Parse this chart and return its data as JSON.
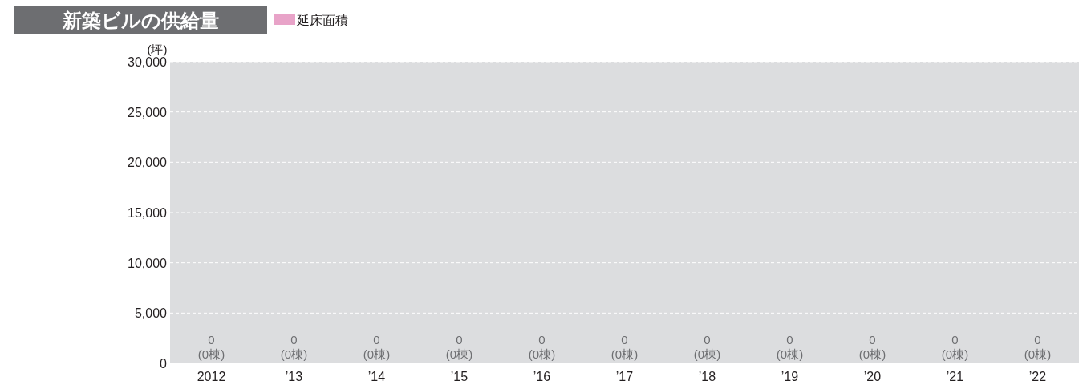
{
  "chart_data": {
    "type": "bar",
    "title": "新築ビルの供給量",
    "ylabel": "(坪)",
    "categories": [
      "2012",
      "’13",
      "’14",
      "’15",
      "’16",
      "’17",
      "’18",
      "’19",
      "’20",
      "’21",
      "’22"
    ],
    "series": [
      {
        "name": "延床面積",
        "color": "#e8a3c8",
        "values": [
          0,
          0,
          0,
          0,
          0,
          0,
          0,
          0,
          0,
          0,
          0
        ],
        "value_labels": [
          "0\n(0棟)",
          "0\n(0棟)",
          "0\n(0棟)",
          "0\n(0棟)",
          "0\n(0棟)",
          "0\n(0棟)",
          "0\n(0棟)",
          "0\n(0棟)",
          "0\n(0棟)",
          "0\n(0棟)",
          "0\n(0棟)"
        ]
      }
    ],
    "ylim": [
      0,
      30000
    ],
    "yticks": [
      {
        "value": 0,
        "label": "0"
      },
      {
        "value": 5000,
        "label": "5,000"
      },
      {
        "value": 10000,
        "label": "10,000"
      },
      {
        "value": 15000,
        "label": "15,000"
      },
      {
        "value": 20000,
        "label": "20,000"
      },
      {
        "value": 25000,
        "label": "25,000"
      },
      {
        "value": 30000,
        "label": "30,000"
      }
    ],
    "grid": "y",
    "legend": "top left"
  }
}
